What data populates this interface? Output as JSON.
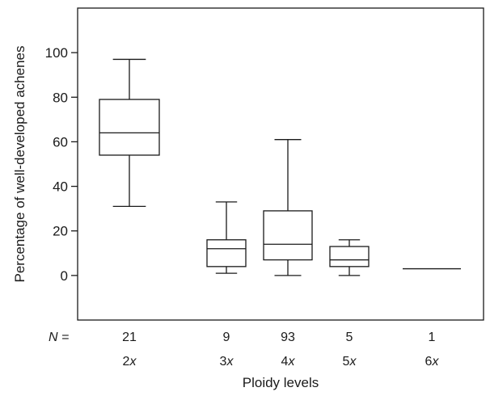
{
  "chart_data": {
    "type": "box",
    "ylabel": "Percentage of well-developed achenes",
    "xlabel": "Ploidy levels",
    "ylim": [
      -20,
      120
    ],
    "yticks": [
      0,
      20,
      40,
      60,
      80,
      100
    ],
    "n_label": "N =",
    "categories": [
      {
        "n": "21",
        "ploidy_num": "2",
        "ploidy_x": "x",
        "min": 31,
        "q1": 54,
        "median": 64,
        "q3": 79,
        "max": 97
      },
      {
        "n": "9",
        "ploidy_num": "3",
        "ploidy_x": "x",
        "min": 1,
        "q1": 4,
        "median": 12,
        "q3": 16,
        "max": 33
      },
      {
        "n": "93",
        "ploidy_num": "4",
        "ploidy_x": "x",
        "min": 0,
        "q1": 7,
        "median": 14,
        "q3": 29,
        "max": 61
      },
      {
        "n": "5",
        "ploidy_num": "5",
        "ploidy_x": "x",
        "min": 0,
        "q1": 4,
        "median": 7,
        "q3": 13,
        "max": 16
      },
      {
        "n": "1",
        "ploidy_num": "6",
        "ploidy_x": "x",
        "min": 3,
        "q1": 3,
        "median": 3,
        "q3": 3,
        "max": 3
      }
    ]
  }
}
